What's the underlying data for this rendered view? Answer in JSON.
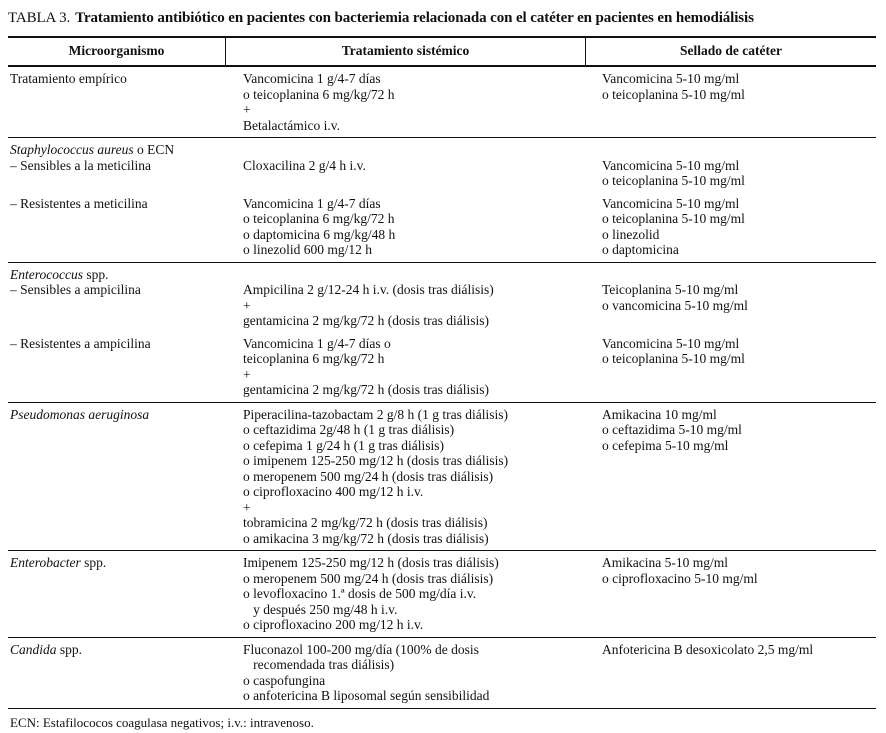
{
  "title": {
    "label": "TABLA 3.",
    "text": "Tratamiento antibiótico en pacientes con bacteriemia relacionada con el catéter en pacientes en hemodiálisis"
  },
  "columns": [
    "Microorganismo",
    "Tratamiento sistémico",
    "Sellado de catéter"
  ],
  "sections": [
    {
      "rows": [
        {
          "micro": [
            {
              "text": "Tratamiento empírico",
              "italic": false
            }
          ],
          "systemic": [
            "Vancomicina 1 g/4-7 días",
            "o teicoplanina 6 mg/kg/72 h",
            "+",
            "Betalactámico i.v."
          ],
          "lock": [
            "Vancomicina 5-10 mg/ml",
            "o teicoplanina 5-10 mg/ml"
          ]
        }
      ]
    },
    {
      "header": [
        {
          "text": "Staphylococcus aureus",
          "italic": true
        },
        {
          "text": " o ECN",
          "italic": false
        }
      ],
      "rows": [
        {
          "micro": [
            {
              "text": "– Sensibles a la meticilina",
              "italic": false
            }
          ],
          "systemic": [
            "Cloxacilina 2 g/4 h i.v."
          ],
          "lock": [
            "Vancomicina 5-10 mg/ml",
            "o teicoplanina 5-10 mg/ml"
          ]
        },
        {
          "micro": [
            {
              "text": "– Resistentes a meticilina",
              "italic": false
            }
          ],
          "systemic": [
            "Vancomicina 1 g/4-7 días",
            "o teicoplanina 6 mg/kg/72 h",
            "o daptomicina 6 mg/kg/48 h",
            "o linezolid 600 mg/12 h"
          ],
          "lock": [
            "Vancomicina 5-10 mg/ml",
            "o teicoplanina 5-10 mg/ml",
            "o linezolid",
            "o daptomicina"
          ]
        }
      ]
    },
    {
      "header": [
        {
          "text": "Enterococcus",
          "italic": true
        },
        {
          "text": " spp.",
          "italic": false
        }
      ],
      "rows": [
        {
          "micro": [
            {
              "text": "– Sensibles a ampicilina",
              "italic": false
            }
          ],
          "systemic": [
            "Ampicilina 2 g/12-24 h i.v. (dosis tras diálisis)",
            "+",
            "gentamicina 2 mg/kg/72 h (dosis tras diálisis)"
          ],
          "lock": [
            "Teicoplanina 5-10 mg/ml",
            "o vancomicina 5-10 mg/ml"
          ]
        },
        {
          "micro": [
            {
              "text": "– Resistentes a ampicilina",
              "italic": false
            }
          ],
          "systemic": [
            "Vancomicina 1 g/4-7 días o",
            "teicoplanina 6 mg/kg/72 h",
            "+",
            "gentamicina 2 mg/kg/72 h (dosis tras diálisis)"
          ],
          "lock": [
            "Vancomicina 5-10 mg/ml",
            "o teicoplanina 5-10 mg/ml"
          ]
        }
      ]
    },
    {
      "rows": [
        {
          "micro": [
            {
              "text": "Pseudomonas aeruginosa",
              "italic": true
            }
          ],
          "systemic": [
            "Piperacilina-tazobactam 2 g/8 h (1 g tras diálisis)",
            "o ceftazidima 2g/48 h (1 g tras diálisis)",
            "o cefepima 1 g/24 h (1 g tras diálisis)",
            "o imipenem 125-250 mg/12 h (dosis tras diálisis)",
            "o meropenem 500 mg/24 h (dosis tras diálisis)",
            "o ciprofloxacino 400 mg/12 h i.v.",
            "+",
            "tobramicina 2 mg/kg/72 h (dosis tras diálisis)",
            "o amikacina 3 mg/kg/72 h (dosis tras diálisis)"
          ],
          "lock": [
            "Amikacina 10 mg/ml",
            "o ceftazidima 5-10 mg/ml",
            "o cefepima 5-10 mg/ml"
          ]
        }
      ]
    },
    {
      "rows": [
        {
          "micro": [
            {
              "text": "Enterobacter",
              "italic": true
            },
            {
              "text": " spp.",
              "italic": false
            }
          ],
          "systemic": [
            "Imipenem 125-250 mg/12 h (dosis tras diálisis)",
            "o meropenem 500 mg/24 h (dosis tras diálisis)",
            "o levofloxacino 1.ª dosis de 500 mg/día i.v.",
            "   y después 250 mg/48 h i.v.",
            "o ciprofloxacino 200 mg/12 h i.v."
          ],
          "lock": [
            "Amikacina 5-10 mg/ml",
            "o ciprofloxacino 5-10 mg/ml"
          ]
        }
      ]
    },
    {
      "rows": [
        {
          "micro": [
            {
              "text": "Candida",
              "italic": true
            },
            {
              "text": " spp.",
              "italic": false
            }
          ],
          "systemic": [
            "Fluconazol 100-200 mg/día (100% de dosis",
            "   recomendada tras diálisis)",
            "o caspofungina",
            "o anfotericina B liposomal según sensibilidad"
          ],
          "lock": [
            "Anfotericina B desoxicolato 2,5 mg/ml"
          ]
        }
      ]
    }
  ],
  "footnote": "ECN: Estafilococos coagulasa negativos; i.v.: intravenoso."
}
